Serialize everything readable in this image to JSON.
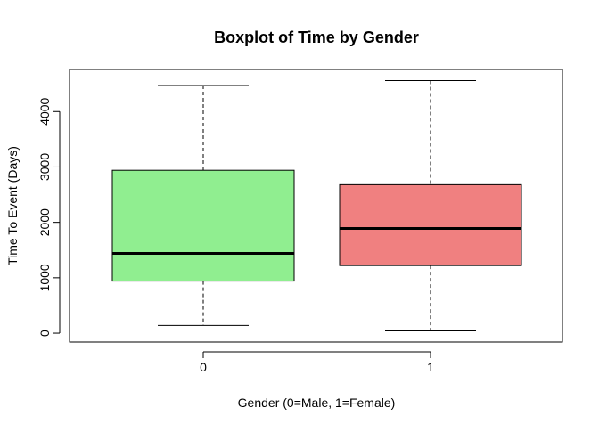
{
  "chart_data": {
    "type": "boxplot",
    "title": "Boxplot of Time by Gender",
    "xlabel": "Gender (0=Male, 1=Female)",
    "ylabel": "Time To Event (Days)",
    "categories": [
      "0",
      "1"
    ],
    "boxes": [
      {
        "category": "0",
        "min": 140,
        "q1": 940,
        "median": 1440,
        "q3": 2940,
        "max": 4470,
        "color": "#90EE90"
      },
      {
        "category": "1",
        "min": 40,
        "q1": 1220,
        "median": 1890,
        "q3": 2680,
        "max": 4560,
        "color": "#F08080"
      }
    ],
    "y_ticks": [
      0,
      1000,
      2000,
      3000,
      4000
    ],
    "ylim": [
      -160,
      4760
    ],
    "grid": false,
    "box_frame": true
  }
}
